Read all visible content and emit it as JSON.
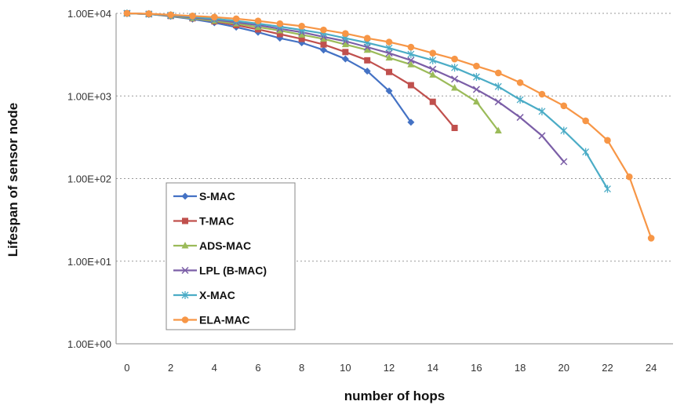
{
  "chart_data": {
    "type": "line",
    "xlabel": "number of hops",
    "ylabel": "Lifespan of sensor node",
    "y_scale": "log",
    "ylim": [
      1,
      10000
    ],
    "xlim": [
      -0.5,
      25
    ],
    "x_ticks": [
      0,
      2,
      4,
      6,
      8,
      10,
      12,
      14,
      16,
      18,
      20,
      22,
      24
    ],
    "y_ticks": [
      1,
      10,
      100,
      1000,
      10000
    ],
    "y_tick_labels": [
      "1.00E+00",
      "1.00E+01",
      "1.00E+02",
      "1.00E+03",
      "1.00E+04"
    ],
    "grid": "horizontal dotted",
    "legend_position": "lower-left",
    "series": [
      {
        "name": "S-MAC",
        "color": "#4472C4",
        "marker": "diamond",
        "x": [
          0,
          1,
          2,
          3,
          4,
          5,
          6,
          7,
          8,
          9,
          10,
          11,
          12,
          13
        ],
        "values": [
          10000,
          9800,
          9200,
          8500,
          7700,
          6800,
          5900,
          5000,
          4400,
          3600,
          2800,
          2000,
          1150,
          480
        ]
      },
      {
        "name": "T-MAC",
        "color": "#C0504D",
        "marker": "square",
        "x": [
          0,
          1,
          2,
          3,
          4,
          5,
          6,
          7,
          8,
          9,
          10,
          11,
          12,
          13,
          14,
          15
        ],
        "values": [
          10000,
          9800,
          9300,
          8700,
          8000,
          7200,
          6400,
          5600,
          4900,
          4200,
          3400,
          2700,
          1950,
          1350,
          850,
          410
        ]
      },
      {
        "name": "ADS-MAC",
        "color": "#9BBB59",
        "marker": "triangle",
        "x": [
          0,
          1,
          2,
          3,
          4,
          5,
          6,
          7,
          8,
          9,
          10,
          11,
          12,
          13,
          14,
          15,
          16,
          17
        ],
        "values": [
          10000,
          9800,
          9300,
          8700,
          8100,
          7500,
          6800,
          6200,
          5500,
          4900,
          4200,
          3600,
          2900,
          2400,
          1800,
          1250,
          850,
          380
        ]
      },
      {
        "name": "LPL (B-MAC)",
        "color": "#7B5EA7",
        "marker": "x",
        "x": [
          0,
          1,
          2,
          3,
          4,
          5,
          6,
          7,
          8,
          9,
          10,
          11,
          12,
          13,
          14,
          15,
          16,
          17,
          18,
          19,
          20
        ],
        "values": [
          10000,
          9800,
          9400,
          8900,
          8400,
          7800,
          7200,
          6500,
          5900,
          5200,
          4600,
          3900,
          3300,
          2700,
          2100,
          1600,
          1200,
          850,
          550,
          330,
          160
        ]
      },
      {
        "name": "X-MAC",
        "color": "#4BACC6",
        "marker": "asterisk",
        "x": [
          0,
          1,
          2,
          3,
          4,
          5,
          6,
          7,
          8,
          9,
          10,
          11,
          12,
          13,
          14,
          15,
          16,
          17,
          18,
          19,
          20,
          21,
          22
        ],
        "values": [
          10000,
          9800,
          9500,
          9100,
          8600,
          8100,
          7500,
          6900,
          6300,
          5700,
          5000,
          4400,
          3800,
          3200,
          2700,
          2200,
          1700,
          1300,
          900,
          650,
          380,
          210,
          75
        ]
      },
      {
        "name": "ELA-MAC",
        "color": "#F79646",
        "marker": "circle",
        "x": [
          0,
          1,
          2,
          3,
          4,
          5,
          6,
          7,
          8,
          9,
          10,
          11,
          12,
          13,
          14,
          15,
          16,
          17,
          18,
          19,
          20,
          21,
          22,
          23,
          24
        ],
        "values": [
          10000,
          9900,
          9600,
          9300,
          9000,
          8600,
          8100,
          7500,
          7000,
          6300,
          5700,
          5000,
          4500,
          3900,
          3300,
          2800,
          2300,
          1900,
          1450,
          1050,
          760,
          500,
          290,
          105,
          19
        ]
      }
    ]
  }
}
